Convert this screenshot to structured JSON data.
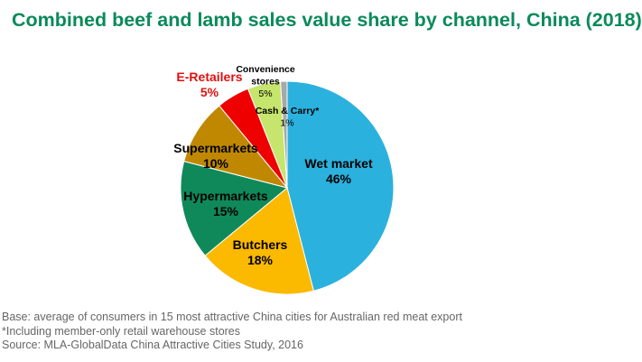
{
  "colors": {
    "title": "#0a8a5a",
    "footnote": "#666666",
    "highlight_label": "#e01010"
  },
  "title": "Combined beef and lamb sales value share by channel, China (2018)",
  "footnotes": [
    "Base: average of consumers in 15 most attractive China cities for Australian red meat export",
    "*Including member-only retail warehouse stores",
    "Source: MLA-GlobalData China Attractive Cities Study, 2016"
  ],
  "chart_data": {
    "type": "pie",
    "title": "Combined beef and lamb sales value share by channel, China (2018)",
    "slices": [
      {
        "name": "Wet market",
        "value": 46,
        "label": "46%",
        "color": "#2bb1de"
      },
      {
        "name": "Butchers",
        "value": 18,
        "label": "18%",
        "color": "#fbb900"
      },
      {
        "name": "Hypermarkets",
        "value": 15,
        "label": "15%",
        "color": "#10895a"
      },
      {
        "name": "Supermarkets",
        "value": 10,
        "label": "10%",
        "color": "#c08800"
      },
      {
        "name": "E-Retailers",
        "value": 5,
        "label": "5%",
        "color": "#ef0000",
        "highlight": true
      },
      {
        "name": "Convenience stores",
        "value": 5,
        "label": "5%",
        "color": "#c6e56c"
      },
      {
        "name": "Cash & Carry*",
        "value": 1,
        "label": "1%",
        "color": "#a8a8a8"
      }
    ]
  }
}
